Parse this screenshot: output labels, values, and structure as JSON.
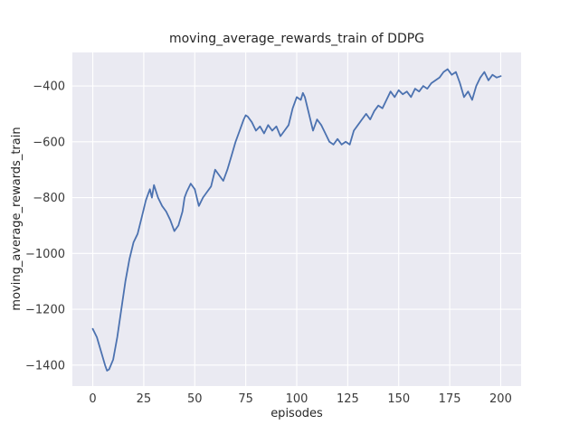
{
  "figure": {
    "background_color": "#ffffff"
  },
  "chart_data": {
    "type": "line",
    "title": "moving_average_rewards_train of DDPG",
    "xlabel": "episodes",
    "ylabel": "moving_average_rewards_train",
    "x_ticks": [
      0,
      25,
      50,
      75,
      100,
      125,
      150,
      175,
      200
    ],
    "y_ticks": [
      -1400,
      -1200,
      -1000,
      -800,
      -600,
      -400
    ],
    "xlim": [
      -10,
      210
    ],
    "ylim": [
      -1475,
      -280
    ],
    "grid": true,
    "legend_position": "none",
    "style": "seaborn-darkgrid",
    "axes_background": "#eaeaf2",
    "grid_color": "#ffffff",
    "line_color": "#4c72b0",
    "series": [
      {
        "name": "moving_average_rewards_train",
        "x": [
          0,
          2,
          4,
          6,
          7,
          8,
          10,
          12,
          14,
          16,
          18,
          20,
          22,
          24,
          26,
          27,
          28,
          29,
          30,
          32,
          34,
          36,
          38,
          40,
          42,
          44,
          45,
          46,
          48,
          50,
          52,
          54,
          56,
          58,
          60,
          62,
          64,
          66,
          68,
          70,
          72,
          74,
          75,
          76,
          78,
          80,
          82,
          84,
          86,
          88,
          90,
          92,
          94,
          96,
          98,
          100,
          102,
          103,
          104,
          106,
          108,
          110,
          112,
          114,
          116,
          118,
          120,
          122,
          124,
          126,
          128,
          130,
          132,
          134,
          136,
          138,
          140,
          142,
          144,
          146,
          148,
          150,
          152,
          154,
          156,
          158,
          160,
          162,
          164,
          166,
          168,
          170,
          172,
          174,
          176,
          178,
          180,
          182,
          184,
          186,
          188,
          190,
          192,
          194,
          196,
          198,
          200
        ],
        "y": [
          -1270,
          -1300,
          -1350,
          -1400,
          -1420,
          -1415,
          -1380,
          -1300,
          -1200,
          -1100,
          -1020,
          -960,
          -930,
          -870,
          -810,
          -790,
          -770,
          -800,
          -755,
          -800,
          -830,
          -850,
          -880,
          -920,
          -900,
          -850,
          -800,
          -780,
          -750,
          -770,
          -830,
          -800,
          -780,
          -760,
          -700,
          -720,
          -740,
          -700,
          -650,
          -600,
          -560,
          -520,
          -505,
          -510,
          -530,
          -560,
          -545,
          -570,
          -540,
          -560,
          -545,
          -580,
          -560,
          -540,
          -480,
          -440,
          -450,
          -425,
          -440,
          -500,
          -560,
          -520,
          -540,
          -570,
          -600,
          -610,
          -590,
          -610,
          -600,
          -610,
          -560,
          -540,
          -520,
          -500,
          -520,
          -490,
          -470,
          -480,
          -450,
          -420,
          -440,
          -415,
          -430,
          -420,
          -440,
          -410,
          -420,
          -400,
          -410,
          -390,
          -380,
          -370,
          -350,
          -340,
          -360,
          -350,
          -390,
          -440,
          -420,
          -450,
          -400,
          -370,
          -350,
          -380,
          -360,
          -370,
          -365
        ]
      }
    ]
  }
}
